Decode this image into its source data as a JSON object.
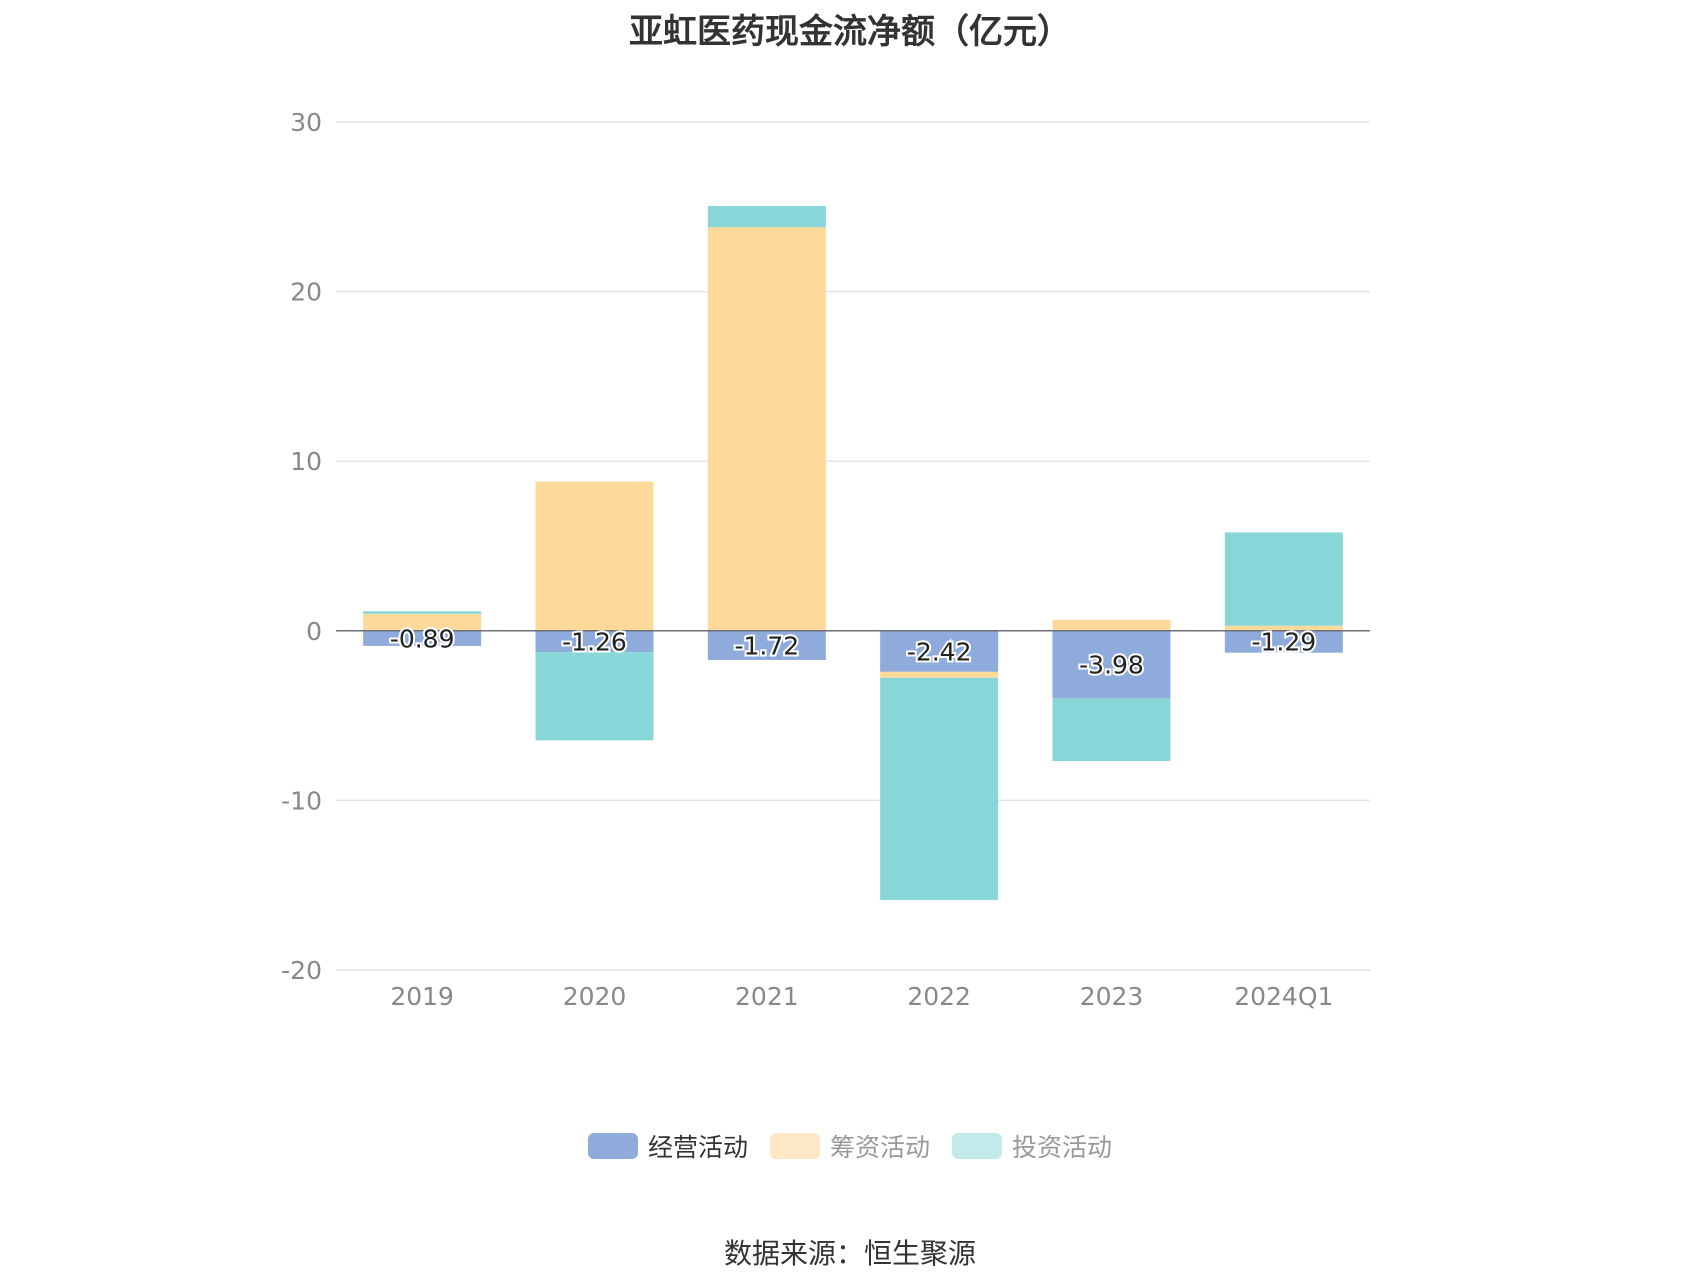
{
  "chart_data": {
    "type": "bar",
    "stacked": true,
    "title": "亚虹医药现金流净额（亿元）",
    "categories": [
      "2019",
      "2020",
      "2021",
      "2022",
      "2023",
      "2024Q1"
    ],
    "ylim": [
      -20,
      30
    ],
    "yticks": [
      "30",
      "20",
      "10",
      "0",
      "-10",
      "-20"
    ],
    "grid": true,
    "legend_position": "bottom",
    "series": [
      {
        "name": "经营活动",
        "color": "#8eabdb",
        "values": [
          -0.89,
          -1.26,
          -1.72,
          -2.42,
          -3.98,
          -1.29
        ],
        "labels": [
          "-0.89",
          "-1.26",
          "-1.72",
          "-2.42",
          "-3.98",
          "-1.29"
        ]
      },
      {
        "name": "筹资活动",
        "color": "#fdd99a",
        "values": [
          1.0,
          8.8,
          23.8,
          -0.35,
          0.65,
          0.3
        ]
      },
      {
        "name": "投资活动",
        "color": "#88d6d8",
        "values": [
          0.15,
          -5.2,
          1.25,
          -13.1,
          -3.7,
          5.5
        ]
      }
    ],
    "legend": [
      {
        "name": "经营活动",
        "color": "#8eabdb",
        "text_color": "#333333"
      },
      {
        "name": "筹资活动",
        "color": "#fde8c6",
        "text_color": "#999999"
      },
      {
        "name": "投资活动",
        "color": "#c3e9ea",
        "text_color": "#999999"
      }
    ]
  },
  "source": "数据来源：恒生聚源"
}
